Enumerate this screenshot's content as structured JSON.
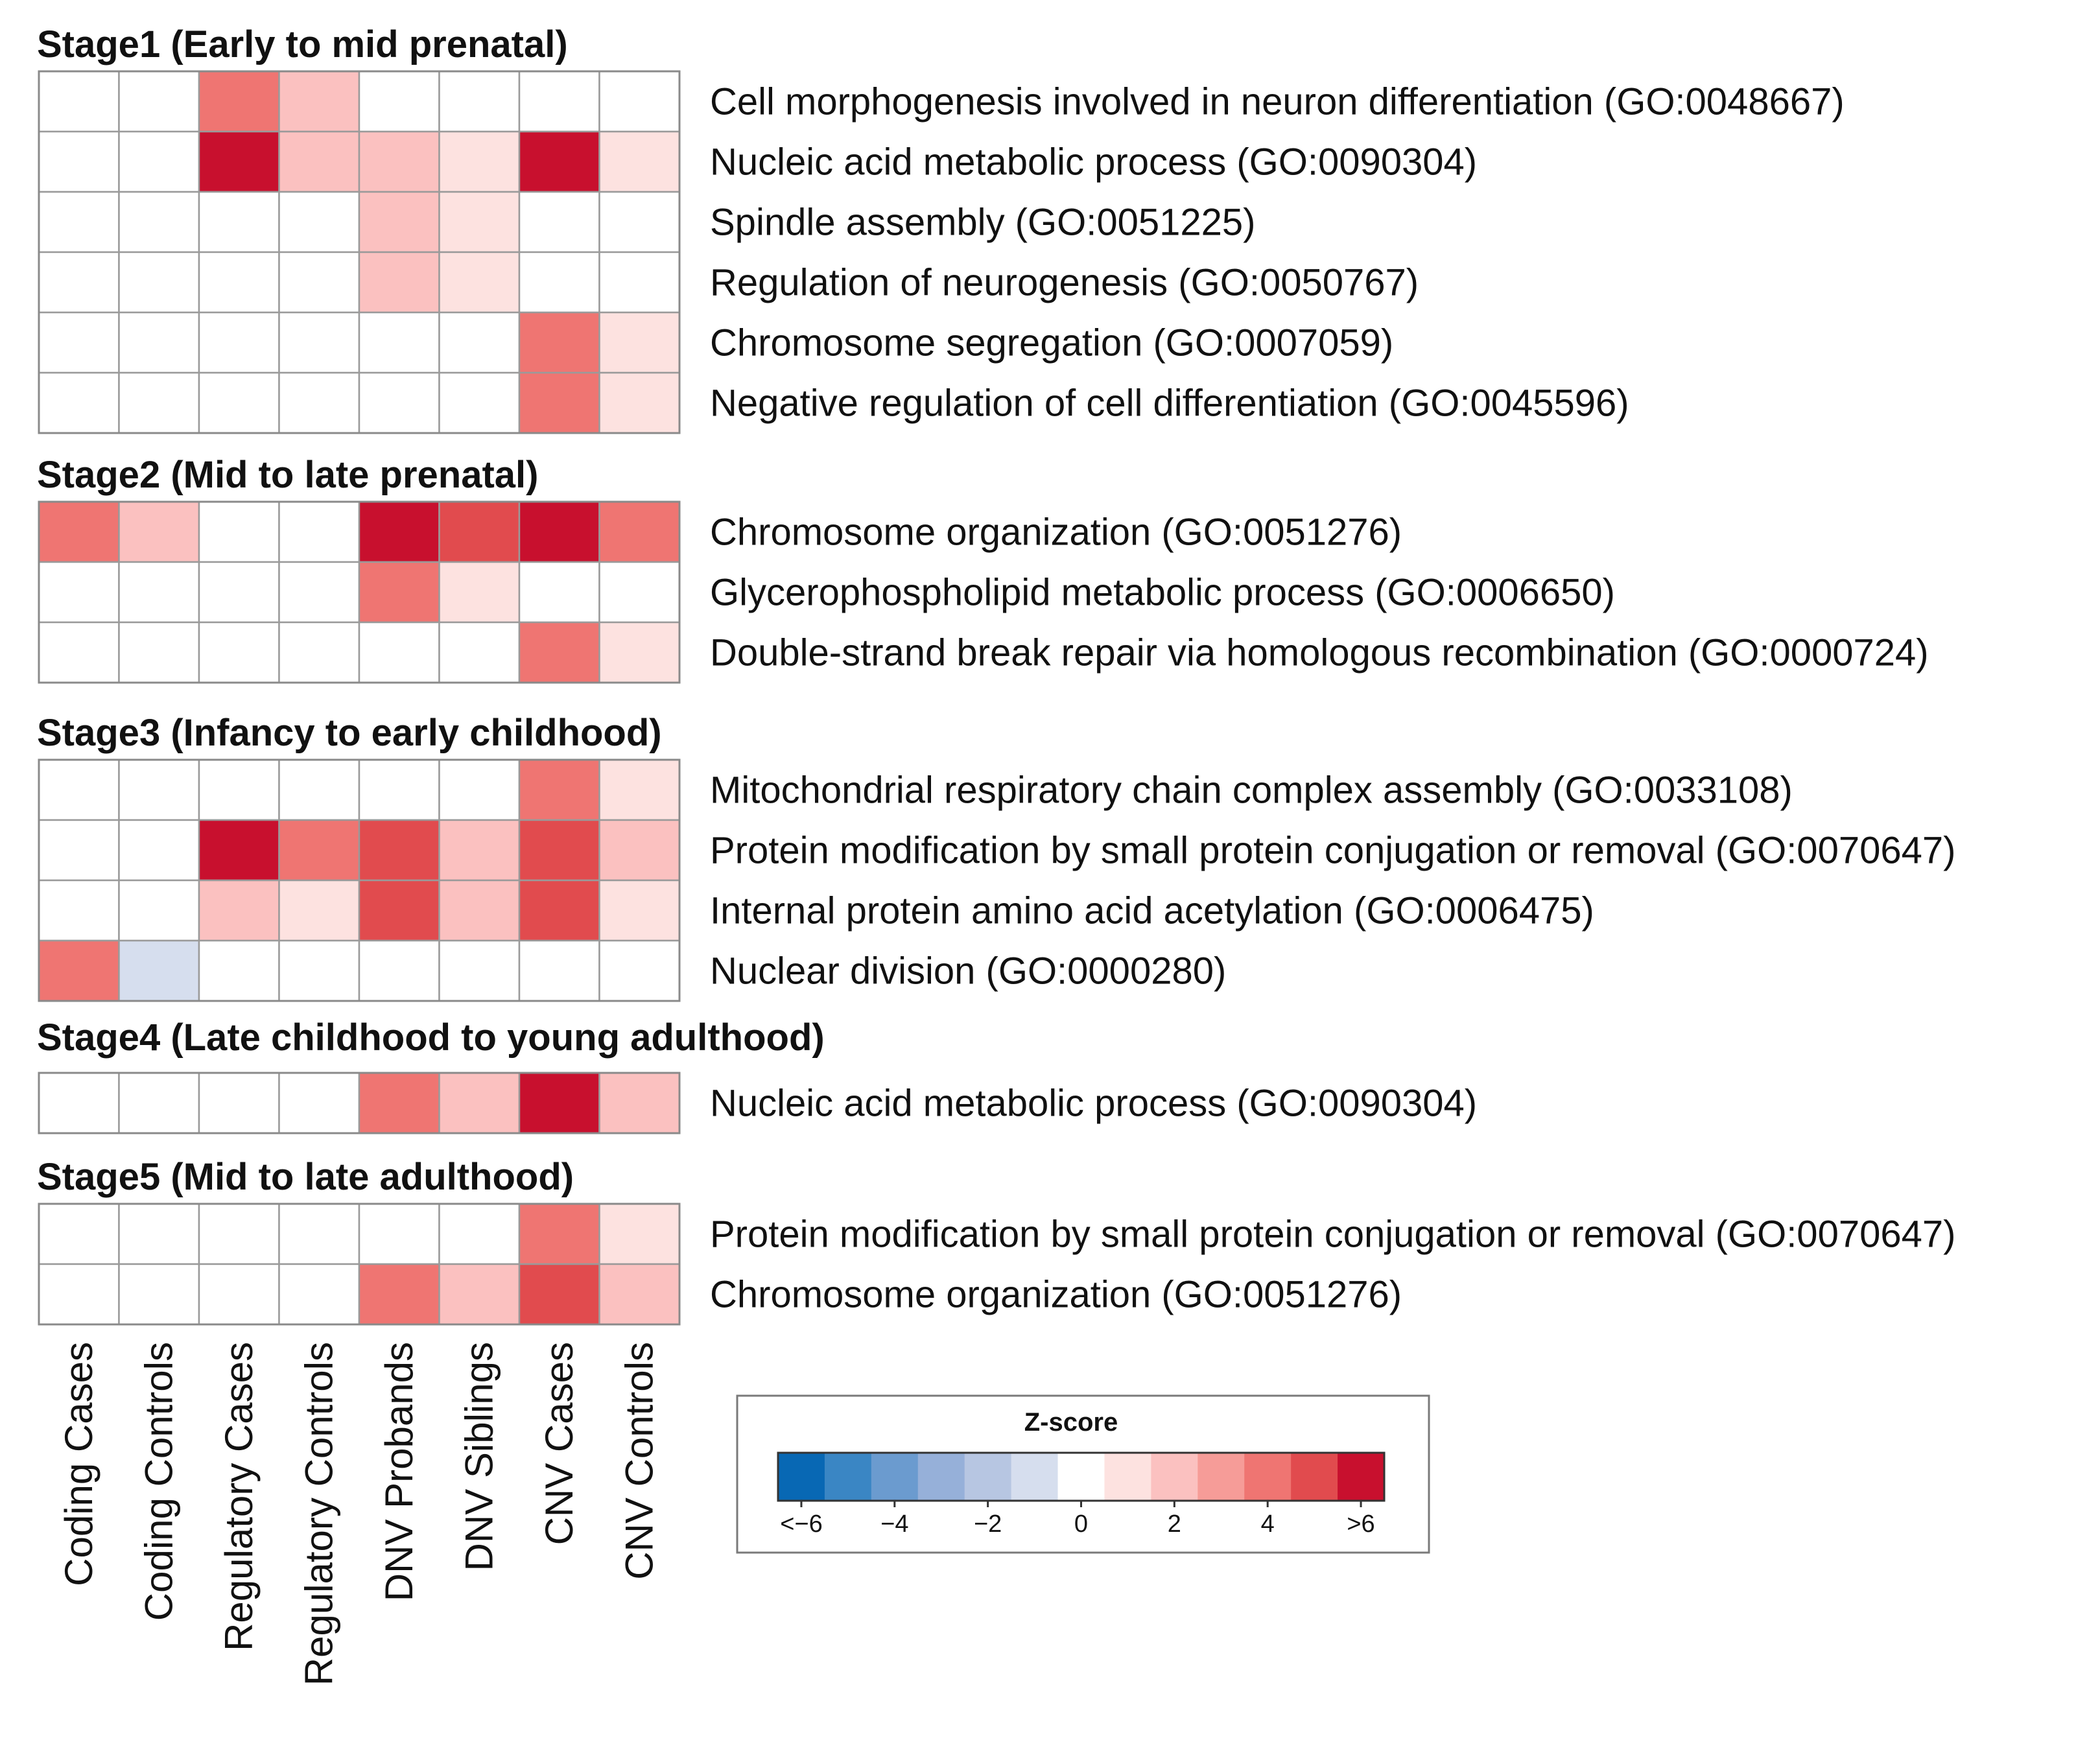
{
  "chart_data": {
    "type": "heatmap",
    "columns": [
      "Coding Cases",
      "Coding Controls",
      "Regulatory Cases",
      "Regulatory Controls",
      "DNV Probands",
      "DNV Siblings",
      "CNV Cases",
      "CNV Controls"
    ],
    "stages": [
      {
        "title": "Stage1 (Early to mid prenatal)",
        "rows": [
          {
            "label": "Cell morphogenesis involved in neuron differentiation (GO:0048667)",
            "values": [
              0,
              0,
              4,
              1.5,
              0,
              0,
              0,
              0
            ]
          },
          {
            "label": "Nucleic acid metabolic process (GO:0090304)",
            "values": [
              0,
              0,
              5.5,
              2,
              2,
              0.5,
              6,
              0.5
            ]
          },
          {
            "label": "Spindle assembly (GO:0051225)",
            "values": [
              0,
              0,
              0,
              0,
              2,
              0.5,
              0,
              0
            ]
          },
          {
            "label": "Regulation of neurogenesis (GO:0050767)",
            "values": [
              0,
              0,
              0,
              0,
              2,
              0.5,
              0,
              0
            ]
          },
          {
            "label": "Chromosome segregation (GO:0007059)",
            "values": [
              0,
              0,
              0,
              0,
              0,
              0,
              4,
              0.5
            ]
          },
          {
            "label": "Negative regulation of cell differentiation (GO:0045596)",
            "values": [
              0,
              0,
              0,
              0,
              0,
              0,
              4,
              0.5
            ]
          }
        ]
      },
      {
        "title": "Stage2 (Mid to late prenatal)",
        "rows": [
          {
            "label": "Chromosome organization (GO:0051276)",
            "values": [
              4,
              1.5,
              0,
              0,
              5.5,
              4.5,
              6,
              3.5
            ]
          },
          {
            "label": "Glycerophospholipid metabolic process (GO:0006650)",
            "values": [
              0,
              0,
              0,
              0,
              4,
              0.5,
              0,
              0
            ]
          },
          {
            "label": "Double-strand break repair via homologous recombination (GO:0000724)",
            "values": [
              0,
              0,
              0,
              0,
              0,
              0,
              3.5,
              0.5
            ]
          }
        ]
      },
      {
        "title": "Stage3 (Infancy to early childhood)",
        "rows": [
          {
            "label": "Mitochondrial respiratory chain complex assembly (GO:0033108)",
            "values": [
              0,
              0,
              0,
              0,
              0,
              0,
              3.5,
              0.5
            ]
          },
          {
            "label": "Protein modification by small protein conjugation or removal (GO:0070647)",
            "values": [
              0,
              0,
              5.5,
              3.5,
              4.5,
              2,
              4.5,
              1.5
            ]
          },
          {
            "label": "Internal protein amino acid acetylation (GO:0006475)",
            "values": [
              0,
              0,
              2,
              0.5,
              4.5,
              2,
              4.5,
              1
            ]
          },
          {
            "label": "Nuclear division (GO:0000280)",
            "values": [
              3.5,
              -1,
              0,
              0,
              0,
              0,
              0,
              0
            ]
          }
        ]
      },
      {
        "title": "Stage4 (Late childhood to young adulthood)",
        "rows": [
          {
            "label": "Nucleic acid metabolic process (GO:0090304)",
            "values": [
              0,
              0,
              0,
              0,
              3.5,
              1.5,
              6,
              1.5
            ]
          }
        ]
      },
      {
        "title": "Stage5 (Mid to late adulthood)",
        "rows": [
          {
            "label": "Protein modification by small protein conjugation or removal (GO:0070647)",
            "values": [
              0,
              0,
              0,
              0,
              0,
              0,
              4,
              0.5
            ]
          },
          {
            "label": "Chromosome organization (GO:0051276)",
            "values": [
              0,
              0,
              0,
              0,
              4,
              2,
              4.5,
              1.5
            ]
          }
        ]
      }
    ],
    "legend": {
      "title": "Z-score",
      "range": [
        -6,
        6
      ],
      "tick_values": [
        -6,
        -4,
        -2,
        0,
        2,
        4,
        6
      ],
      "tick_labels": [
        "<−6",
        "−4",
        "−2",
        "0",
        "2",
        "4",
        ">6"
      ],
      "colors": [
        "#0868b4",
        "#3a86c4",
        "#6b9bcf",
        "#96b0d9",
        "#b7c6e2",
        "#d6deee",
        "#ffffff",
        "#fde2e0",
        "#fbc1c0",
        "#f69c98",
        "#ef7572",
        "#e14b4e",
        "#c8102e"
      ]
    }
  }
}
